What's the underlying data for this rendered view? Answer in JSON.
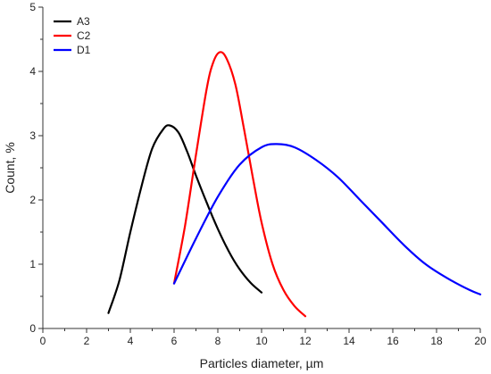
{
  "chart_data": {
    "type": "line",
    "title": "",
    "xlabel": "Particles diameter, µm",
    "ylabel": "Count, %",
    "xlim": [
      0,
      20
    ],
    "ylim": [
      0,
      5
    ],
    "x_ticks": [
      0,
      2,
      4,
      6,
      8,
      10,
      12,
      14,
      16,
      18,
      20
    ],
    "y_ticks": [
      0,
      1,
      2,
      3,
      4,
      5
    ],
    "grid": false,
    "legend_position": "top-left",
    "series": [
      {
        "name": "A3",
        "color": "#000000",
        "x": [
          3.0,
          3.5,
          4.0,
          4.5,
          5.0,
          5.5,
          5.8,
          6.2,
          6.6,
          7.0,
          7.5,
          8.0,
          8.5,
          9.0,
          9.5,
          10.0
        ],
        "y": [
          0.24,
          0.75,
          1.5,
          2.2,
          2.8,
          3.1,
          3.16,
          3.05,
          2.75,
          2.38,
          1.95,
          1.55,
          1.2,
          0.92,
          0.71,
          0.56
        ]
      },
      {
        "name": "C2",
        "color": "#ff0000",
        "x": [
          6.0,
          6.5,
          7.0,
          7.5,
          7.8,
          8.1,
          8.4,
          8.8,
          9.2,
          9.6,
          10.0,
          10.5,
          11.0,
          11.5,
          12.0
        ],
        "y": [
          0.7,
          1.6,
          2.7,
          3.75,
          4.15,
          4.3,
          4.2,
          3.8,
          3.1,
          2.35,
          1.65,
          1.0,
          0.6,
          0.35,
          0.19
        ]
      },
      {
        "name": "D1",
        "color": "#0000ff",
        "x": [
          6.0,
          7.0,
          8.0,
          9.0,
          10.0,
          10.7,
          11.5,
          12.5,
          13.5,
          14.5,
          15.5,
          16.5,
          17.5,
          18.5,
          19.5,
          20.0
        ],
        "y": [
          0.7,
          1.4,
          2.05,
          2.55,
          2.82,
          2.87,
          2.82,
          2.62,
          2.35,
          2.0,
          1.65,
          1.3,
          1.0,
          0.78,
          0.6,
          0.53
        ]
      }
    ]
  }
}
